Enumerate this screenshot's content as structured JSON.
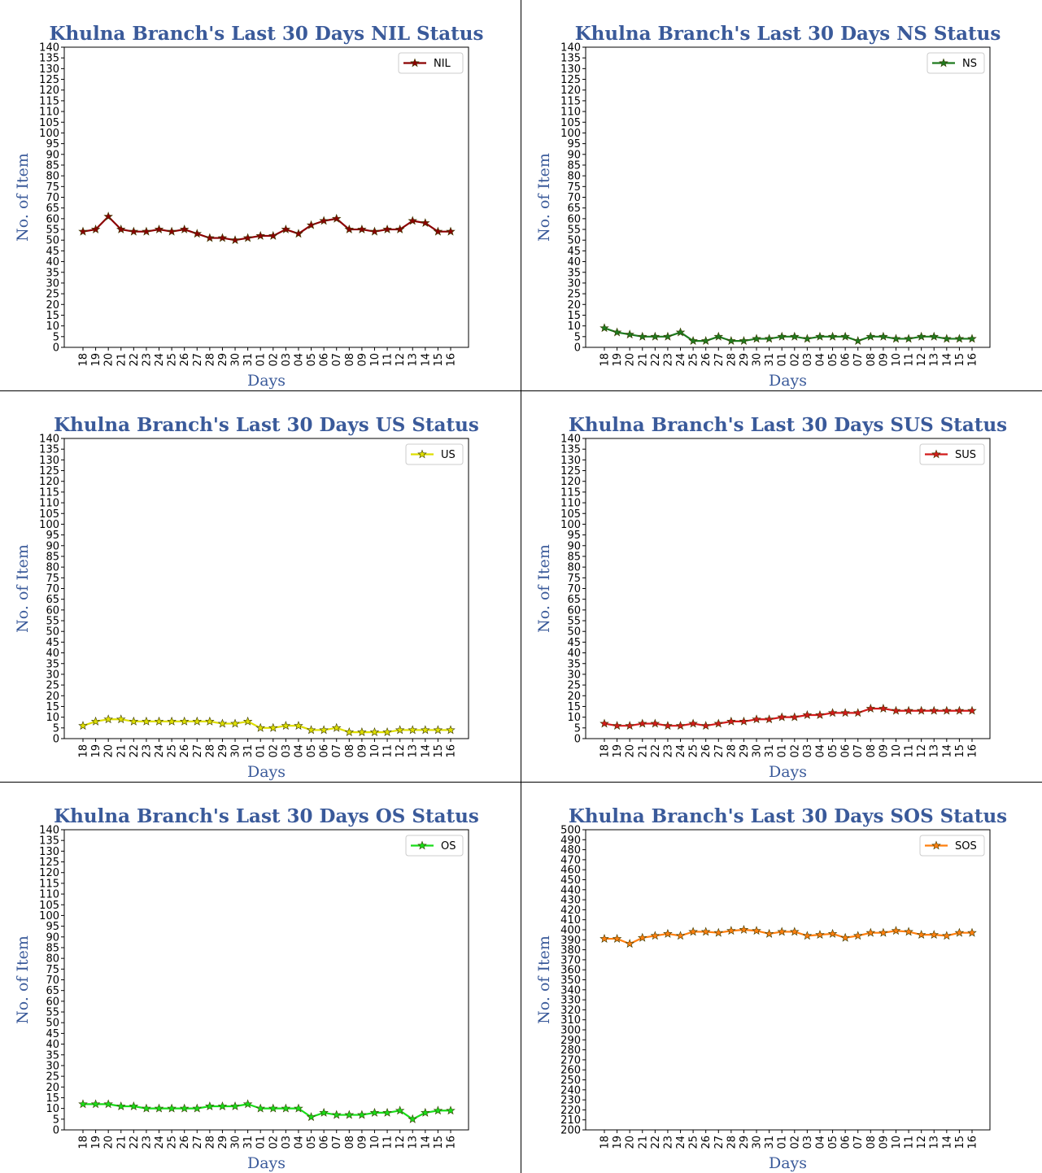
{
  "chart_data": [
    {
      "type": "line",
      "title": "Khulna Branch's Last 30 Days NIL Status",
      "xlabel": "Days",
      "ylabel": "No. of Item",
      "ylim": [
        0,
        140
      ],
      "ystep": 5,
      "categories": [
        "18",
        "19",
        "20",
        "21",
        "22",
        "23",
        "24",
        "25",
        "26",
        "27",
        "28",
        "29",
        "30",
        "31",
        "01",
        "02",
        "03",
        "04",
        "05",
        "06",
        "07",
        "08",
        "09",
        "10",
        "11",
        "12",
        "13",
        "14",
        "15",
        "16"
      ],
      "legend_position": "top-right",
      "series": [
        {
          "name": "NIL",
          "color": "#8b0000",
          "marker": "star-marker",
          "values": [
            54,
            55,
            61,
            55,
            54,
            54,
            55,
            54,
            55,
            53,
            51,
            51,
            50,
            51,
            52,
            52,
            55,
            53,
            57,
            59,
            60,
            55,
            55,
            54,
            55,
            55,
            59,
            58,
            54,
            54
          ]
        }
      ]
    },
    {
      "type": "line",
      "title": "Khulna Branch's Last 30 Days NS Status",
      "xlabel": "Days",
      "ylabel": "No. of Item",
      "ylim": [
        0,
        140
      ],
      "ystep": 5,
      "categories": [
        "18",
        "19",
        "20",
        "21",
        "22",
        "23",
        "24",
        "25",
        "26",
        "27",
        "28",
        "29",
        "30",
        "31",
        "01",
        "02",
        "03",
        "04",
        "05",
        "06",
        "07",
        "08",
        "09",
        "10",
        "11",
        "12",
        "13",
        "14",
        "15",
        "16"
      ],
      "legend_position": "top-right",
      "series": [
        {
          "name": "NS",
          "color": "#1e7a1e",
          "marker": "star-marker",
          "values": [
            9,
            7,
            6,
            5,
            5,
            5,
            7,
            3,
            3,
            5,
            3,
            3,
            4,
            4,
            5,
            5,
            4,
            5,
            5,
            5,
            3,
            5,
            5,
            4,
            4,
            5,
            5,
            4,
            4,
            4
          ]
        }
      ]
    },
    {
      "type": "line",
      "title": "Khulna Branch's Last 30 Days US Status",
      "xlabel": "Days",
      "ylabel": "No. of Item",
      "ylim": [
        0,
        140
      ],
      "ystep": 5,
      "categories": [
        "18",
        "19",
        "20",
        "21",
        "22",
        "23",
        "24",
        "25",
        "26",
        "27",
        "28",
        "29",
        "30",
        "31",
        "01",
        "02",
        "03",
        "04",
        "05",
        "06",
        "07",
        "08",
        "09",
        "10",
        "11",
        "12",
        "13",
        "14",
        "15",
        "16"
      ],
      "legend_position": "top-right",
      "series": [
        {
          "name": "US",
          "color": "#dede00",
          "marker": "star-marker",
          "values": [
            6,
            8,
            9,
            9,
            8,
            8,
            8,
            8,
            8,
            8,
            8,
            7,
            7,
            8,
            5,
            5,
            6,
            6,
            4,
            4,
            5,
            3,
            3,
            3,
            3,
            4,
            4,
            4,
            4,
            4
          ]
        }
      ]
    },
    {
      "type": "line",
      "title": "Khulna Branch's Last 30 Days SUS Status",
      "xlabel": "Days",
      "ylabel": "No. of Item",
      "ylim": [
        0,
        140
      ],
      "ystep": 5,
      "categories": [
        "18",
        "19",
        "20",
        "21",
        "22",
        "23",
        "24",
        "25",
        "26",
        "27",
        "28",
        "29",
        "30",
        "31",
        "01",
        "02",
        "03",
        "04",
        "05",
        "06",
        "07",
        "08",
        "09",
        "10",
        "11",
        "12",
        "13",
        "14",
        "15",
        "16"
      ],
      "legend_position": "top-right",
      "series": [
        {
          "name": "SUS",
          "color": "#d21a1a",
          "marker": "star-marker",
          "values": [
            7,
            6,
            6,
            7,
            7,
            6,
            6,
            7,
            6,
            7,
            8,
            8,
            9,
            9,
            10,
            10,
            11,
            11,
            12,
            12,
            12,
            14,
            14,
            13,
            13,
            13,
            13,
            13,
            13,
            13
          ]
        }
      ]
    },
    {
      "type": "line",
      "title": "Khulna Branch's Last 30 Days OS Status",
      "xlabel": "Days",
      "ylabel": "No. of Item",
      "ylim": [
        0,
        140
      ],
      "ystep": 5,
      "categories": [
        "18",
        "19",
        "20",
        "21",
        "22",
        "23",
        "24",
        "25",
        "26",
        "27",
        "28",
        "29",
        "30",
        "31",
        "01",
        "02",
        "03",
        "04",
        "05",
        "06",
        "07",
        "08",
        "09",
        "10",
        "11",
        "12",
        "13",
        "14",
        "15",
        "16"
      ],
      "legend_position": "top-right",
      "series": [
        {
          "name": "OS",
          "color": "#19dc19",
          "marker": "star-marker",
          "values": [
            12,
            12,
            12,
            11,
            11,
            10,
            10,
            10,
            10,
            10,
            11,
            11,
            11,
            12,
            10,
            10,
            10,
            10,
            6,
            8,
            7,
            7,
            7,
            8,
            8,
            9,
            5,
            8,
            9,
            9
          ]
        }
      ]
    },
    {
      "type": "line",
      "title": "Khulna Branch's Last 30 Days SOS Status",
      "xlabel": "Days",
      "ylabel": "No. of Item",
      "ylim": [
        200,
        500
      ],
      "ystep": 10,
      "categories": [
        "18",
        "19",
        "20",
        "21",
        "22",
        "23",
        "24",
        "25",
        "26",
        "27",
        "28",
        "29",
        "30",
        "31",
        "01",
        "02",
        "03",
        "04",
        "05",
        "06",
        "07",
        "08",
        "09",
        "10",
        "11",
        "12",
        "13",
        "14",
        "15",
        "16"
      ],
      "legend_position": "top-right",
      "series": [
        {
          "name": "SOS",
          "color": "#ff7f0e",
          "marker": "star-marker",
          "values": [
            391,
            391,
            386,
            392,
            394,
            396,
            394,
            398,
            398,
            397,
            399,
            400,
            399,
            396,
            398,
            398,
            394,
            395,
            396,
            392,
            394,
            397,
            397,
            399,
            398,
            395,
            395,
            394,
            397,
            397
          ]
        }
      ]
    }
  ]
}
